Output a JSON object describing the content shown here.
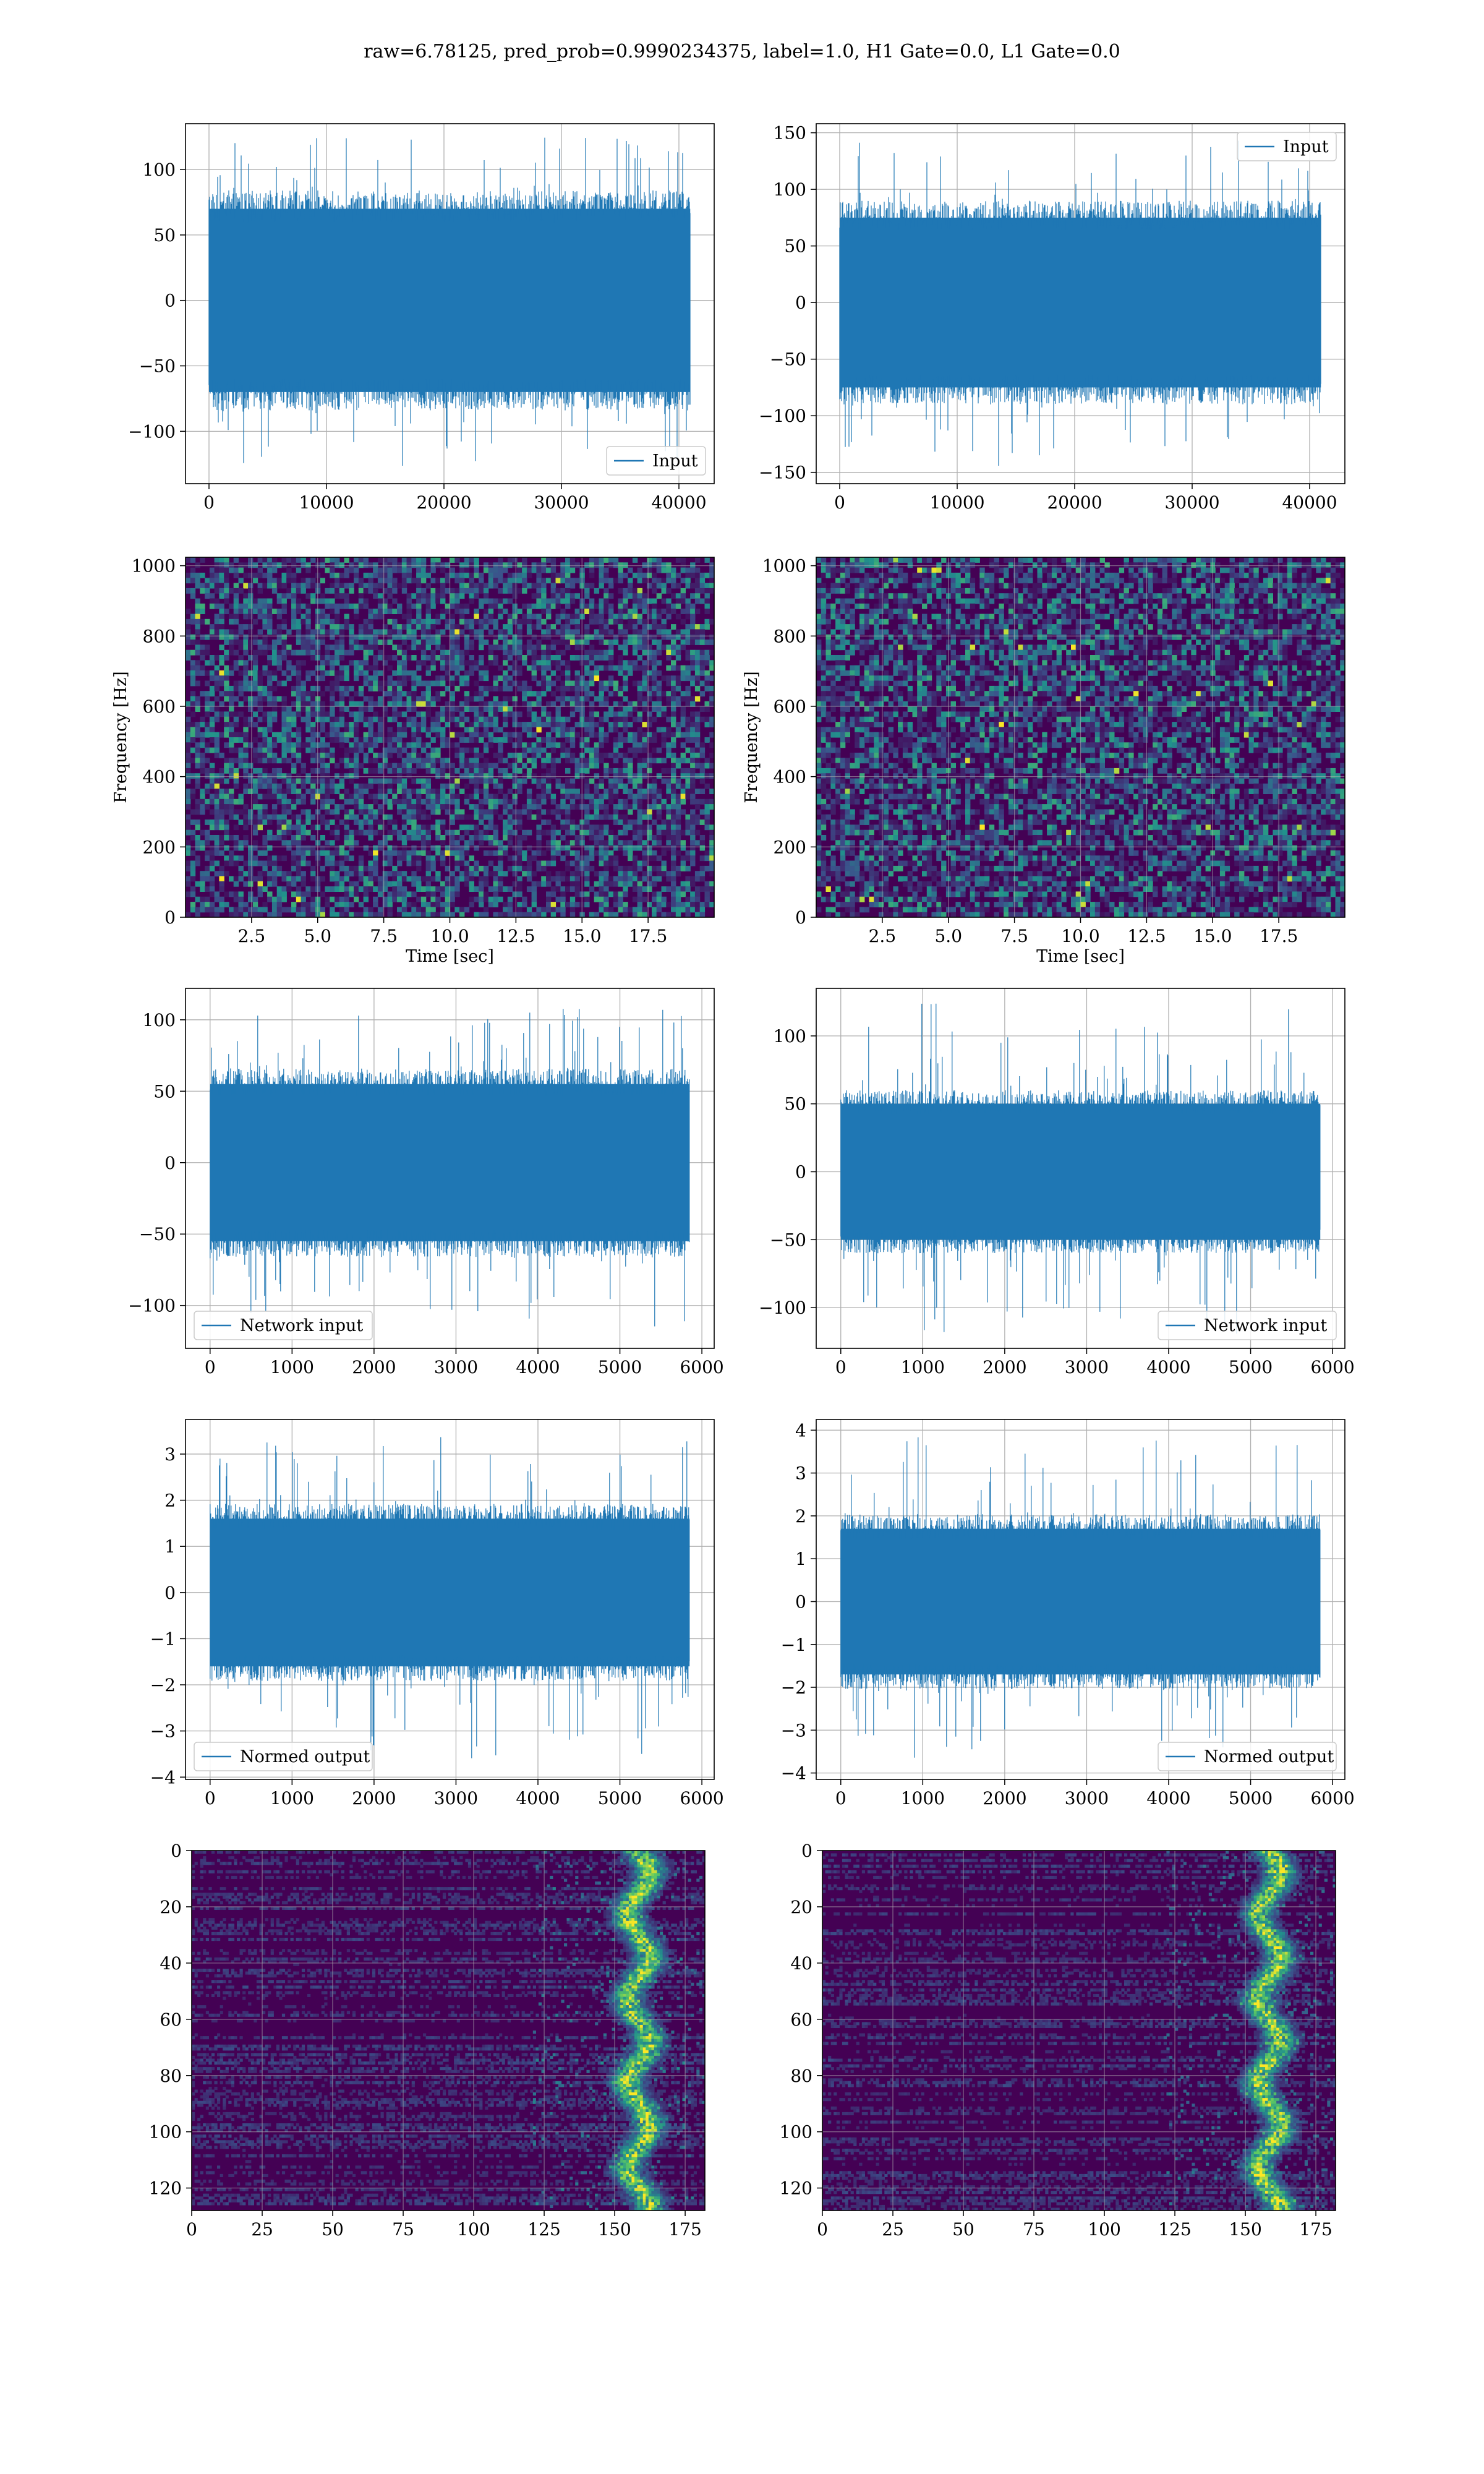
{
  "figure": {
    "title": "raw=6.78125, pred_prob=0.9990234375, label=1.0, H1 Gate=0.0, L1 Gate=0.0"
  },
  "colors": {
    "line": "#1f77b4",
    "grid": "#b0b0b0",
    "viridis_low": "#440154",
    "viridis_mid": "#21918c",
    "viridis_high": "#fde725"
  },
  "chart_data": [
    {
      "id": "h1-input",
      "type": "line",
      "x_range": [
        0,
        40960
      ],
      "xlim": [
        -2000,
        43000
      ],
      "ylim": [
        -140,
        135
      ],
      "xticks": [
        0,
        10000,
        20000,
        30000,
        40000
      ],
      "yticks": [
        -100,
        -50,
        0,
        50,
        100
      ],
      "xticklabels": [
        "0",
        "10000",
        "20000",
        "30000",
        "40000"
      ],
      "yticklabels": [
        "−100",
        "−50",
        "0",
        "50",
        "100"
      ],
      "envelope": {
        "core": 70,
        "peak_max": 125,
        "peak_min": -130
      },
      "series": [
        {
          "name": "Input"
        }
      ],
      "legend": "lower right",
      "grid": true
    },
    {
      "id": "l1-input",
      "type": "line",
      "x_range": [
        0,
        40960
      ],
      "xlim": [
        -2000,
        43000
      ],
      "ylim": [
        -160,
        158
      ],
      "xticks": [
        0,
        10000,
        20000,
        30000,
        40000
      ],
      "yticks": [
        -150,
        -100,
        -50,
        0,
        50,
        100,
        150
      ],
      "xticklabels": [
        "0",
        "10000",
        "20000",
        "30000",
        "40000"
      ],
      "yticklabels": [
        "−150",
        "−100",
        "−50",
        "0",
        "50",
        "100",
        "150"
      ],
      "envelope": {
        "core": 75,
        "peak_max": 145,
        "peak_min": -145
      },
      "series": [
        {
          "name": "Input"
        }
      ],
      "legend": "upper right",
      "grid": true
    },
    {
      "id": "h1-spectrogram",
      "type": "heatmap",
      "xlim": [
        0,
        20
      ],
      "ylim": [
        0,
        1024
      ],
      "xticks": [
        2.5,
        5.0,
        7.5,
        10.0,
        12.5,
        15.0,
        17.5
      ],
      "yticks": [
        0,
        200,
        400,
        600,
        800,
        1000
      ],
      "xticklabels": [
        "2.5",
        "5.0",
        "7.5",
        "10.0",
        "12.5",
        "15.0",
        "17.5"
      ],
      "yticklabels": [
        "0",
        "200",
        "400",
        "600",
        "800",
        "1000"
      ],
      "xlabel": "Time [sec]",
      "ylabel": "Frequency [Hz]",
      "colormap": "viridis",
      "grid": true
    },
    {
      "id": "l1-spectrogram",
      "type": "heatmap",
      "xlim": [
        0,
        20
      ],
      "ylim": [
        0,
        1024
      ],
      "xticks": [
        2.5,
        5.0,
        7.5,
        10.0,
        12.5,
        15.0,
        17.5
      ],
      "yticks": [
        0,
        200,
        400,
        600,
        800,
        1000
      ],
      "xticklabels": [
        "2.5",
        "5.0",
        "7.5",
        "10.0",
        "12.5",
        "15.0",
        "17.5"
      ],
      "yticklabels": [
        "0",
        "200",
        "400",
        "600",
        "800",
        "1000"
      ],
      "xlabel": "Time [sec]",
      "ylabel": "Frequency [Hz]",
      "colormap": "viridis",
      "grid": true
    },
    {
      "id": "h1-network-input",
      "type": "line",
      "x_range": [
        0,
        5850
      ],
      "xlim": [
        -300,
        6150
      ],
      "ylim": [
        -130,
        122
      ],
      "xticks": [
        0,
        1000,
        2000,
        3000,
        4000,
        5000,
        6000
      ],
      "yticks": [
        -100,
        -50,
        0,
        50,
        100
      ],
      "xticklabels": [
        "0",
        "1000",
        "2000",
        "3000",
        "4000",
        "5000",
        "6000"
      ],
      "yticklabels": [
        "−100",
        "−50",
        "0",
        "50",
        "100"
      ],
      "envelope": {
        "core": 55,
        "peak_max": 108,
        "peak_min": -118
      },
      "series": [
        {
          "name": "Network input"
        }
      ],
      "legend": "lower left",
      "grid": true
    },
    {
      "id": "l1-network-input",
      "type": "line",
      "x_range": [
        0,
        5850
      ],
      "xlim": [
        -300,
        6150
      ],
      "ylim": [
        -130,
        135
      ],
      "xticks": [
        0,
        1000,
        2000,
        3000,
        4000,
        5000,
        6000
      ],
      "yticks": [
        -100,
        -50,
        0,
        50,
        100
      ],
      "xticklabels": [
        "0",
        "1000",
        "2000",
        "3000",
        "4000",
        "5000",
        "6000"
      ],
      "yticklabels": [
        "−100",
        "−50",
        "0",
        "50",
        "100"
      ],
      "envelope": {
        "core": 50,
        "peak_max": 124,
        "peak_min": -120
      },
      "series": [
        {
          "name": "Network input"
        }
      ],
      "legend": "lower right",
      "grid": true
    },
    {
      "id": "h1-normed-output",
      "type": "line",
      "x_range": [
        0,
        5850
      ],
      "xlim": [
        -300,
        6150
      ],
      "ylim": [
        -4.05,
        3.75
      ],
      "xticks": [
        0,
        1000,
        2000,
        3000,
        4000,
        5000,
        6000
      ],
      "yticks": [
        -4,
        -3,
        -2,
        -1,
        0,
        1,
        2,
        3
      ],
      "xticklabels": [
        "0",
        "1000",
        "2000",
        "3000",
        "4000",
        "5000",
        "6000"
      ],
      "yticklabels": [
        "−4",
        "−3",
        "−2",
        "−1",
        "0",
        "1",
        "2",
        "3"
      ],
      "envelope": {
        "core": 1.6,
        "peak_max": 3.4,
        "peak_min": -3.6
      },
      "series": [
        {
          "name": "Normed output"
        }
      ],
      "legend": "lower left",
      "grid": true
    },
    {
      "id": "l1-normed-output",
      "type": "line",
      "x_range": [
        0,
        5850
      ],
      "xlim": [
        -300,
        6150
      ],
      "ylim": [
        -4.15,
        4.25
      ],
      "xticks": [
        0,
        1000,
        2000,
        3000,
        4000,
        5000,
        6000
      ],
      "yticks": [
        -4,
        -3,
        -2,
        -1,
        0,
        1,
        2,
        3,
        4
      ],
      "xticklabels": [
        "0",
        "1000",
        "2000",
        "3000",
        "4000",
        "5000",
        "6000"
      ],
      "yticklabels": [
        "−4",
        "−3",
        "−2",
        "−1",
        "0",
        "1",
        "2",
        "3",
        "4"
      ],
      "envelope": {
        "core": 1.7,
        "peak_max": 3.9,
        "peak_min": -3.7
      },
      "series": [
        {
          "name": "Normed output"
        }
      ],
      "legend": "lower right",
      "grid": true
    },
    {
      "id": "h1-feature-map",
      "type": "heatmap",
      "xlim": [
        0,
        182
      ],
      "ylim": [
        128,
        0
      ],
      "xticks": [
        0,
        25,
        50,
        75,
        100,
        125,
        150,
        175
      ],
      "yticks": [
        0,
        20,
        40,
        60,
        80,
        100,
        120
      ],
      "xticklabels": [
        "0",
        "25",
        "50",
        "75",
        "100",
        "125",
        "150",
        "175"
      ],
      "yticklabels": [
        "0",
        "20",
        "40",
        "60",
        "80",
        "100",
        "120"
      ],
      "colormap": "viridis",
      "grid": true
    },
    {
      "id": "l1-feature-map",
      "type": "heatmap",
      "xlim": [
        0,
        182
      ],
      "ylim": [
        128,
        0
      ],
      "xticks": [
        0,
        25,
        50,
        75,
        100,
        125,
        150,
        175
      ],
      "yticks": [
        0,
        20,
        40,
        60,
        80,
        100,
        120
      ],
      "xticklabels": [
        "0",
        "25",
        "50",
        "75",
        "100",
        "125",
        "150",
        "175"
      ],
      "yticklabels": [
        "0",
        "20",
        "40",
        "60",
        "80",
        "100",
        "120"
      ],
      "colormap": "viridis",
      "grid": true
    }
  ]
}
